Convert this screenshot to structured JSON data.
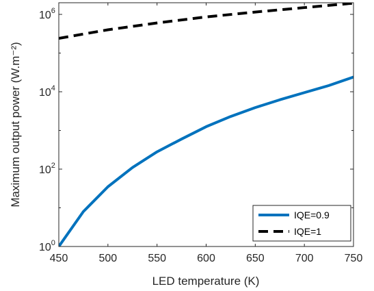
{
  "chart_data": {
    "type": "line",
    "xlabel": "LED temperature (K)",
    "ylabel": "Maximum output power (W.m⁻²)",
    "xlim": [
      450,
      750
    ],
    "ylim": [
      1,
      2000000
    ],
    "yscale": "log",
    "x_ticks": [
      450,
      500,
      550,
      600,
      650,
      700,
      750
    ],
    "y_ticks": [
      {
        "value": 1,
        "base": "10",
        "exp": "0"
      },
      {
        "value": 100,
        "base": "10",
        "exp": "2"
      },
      {
        "value": 10000,
        "base": "10",
        "exp": "4"
      },
      {
        "value": 1000000,
        "base": "10",
        "exp": "6"
      }
    ],
    "grid": false,
    "legend_position": "bottom-right",
    "series": [
      {
        "name": "IQE=0.9",
        "color": "#0072BD",
        "style": "solid",
        "x": [
          450,
          475,
          500,
          525,
          550,
          575,
          600,
          625,
          650,
          675,
          700,
          725,
          750
        ],
        "y": [
          1,
          8,
          35,
          110,
          280,
          600,
          1250,
          2300,
          3900,
          6200,
          9500,
          14500,
          24000
        ]
      },
      {
        "name": "IQE=1",
        "color": "#000000",
        "style": "dashed",
        "x": [
          450,
          500,
          550,
          600,
          650,
          700,
          750
        ],
        "y": [
          240000,
          400000,
          600000,
          860000,
          1150000,
          1500000,
          1950000
        ]
      }
    ]
  }
}
